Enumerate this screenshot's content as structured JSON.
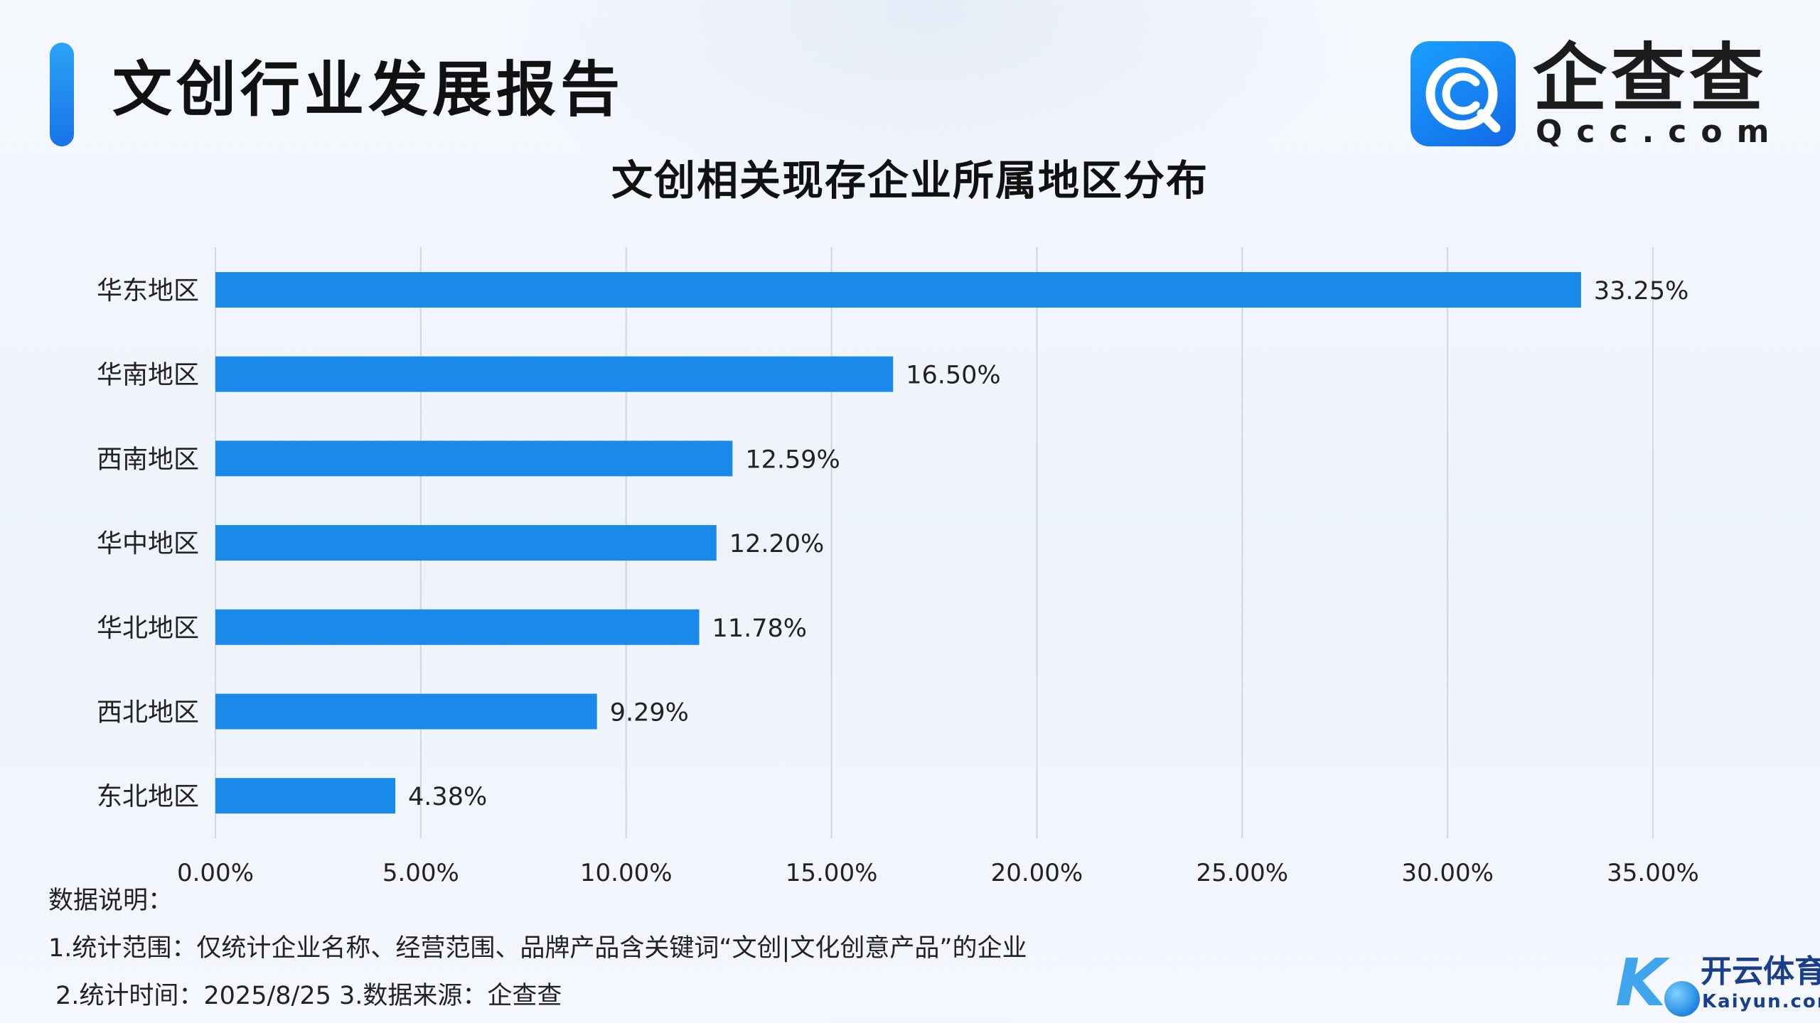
{
  "header": {
    "report_title": "文创行业发展报告",
    "logo_cn": "企查查",
    "logo_en": "Qcc.com"
  },
  "chart_data": {
    "type": "bar",
    "orientation": "horizontal",
    "title": "文创相关现存企业所属地区分布",
    "categories": [
      "华东地区",
      "华南地区",
      "西南地区",
      "华中地区",
      "华北地区",
      "西北地区",
      "东北地区"
    ],
    "values": [
      33.25,
      16.5,
      12.59,
      12.2,
      11.78,
      9.29,
      4.38
    ],
    "value_labels": [
      "33.25%",
      "16.50%",
      "12.59%",
      "12.20%",
      "11.78%",
      "9.29%",
      "4.38%"
    ],
    "xlim": [
      0,
      35
    ],
    "x_ticks": [
      0,
      5,
      10,
      15,
      20,
      25,
      30,
      35
    ],
    "x_tick_labels": [
      "0.00%",
      "5.00%",
      "10.00%",
      "15.00%",
      "20.00%",
      "25.00%",
      "30.00%",
      "35.00%"
    ],
    "grid": true,
    "bar_color": "#1a8aea"
  },
  "notes": {
    "heading": "数据说明：",
    "line1": "1.统计范围：仅统计企业名称、经营范围、品牌产品含关键词“文创|文化创意产品”的企业",
    "line2": "2.统计时间：2025/8/25  3.数据来源：企查查"
  },
  "watermark": {
    "cn": "开云体育",
    "en": "Kaiyun.com"
  }
}
